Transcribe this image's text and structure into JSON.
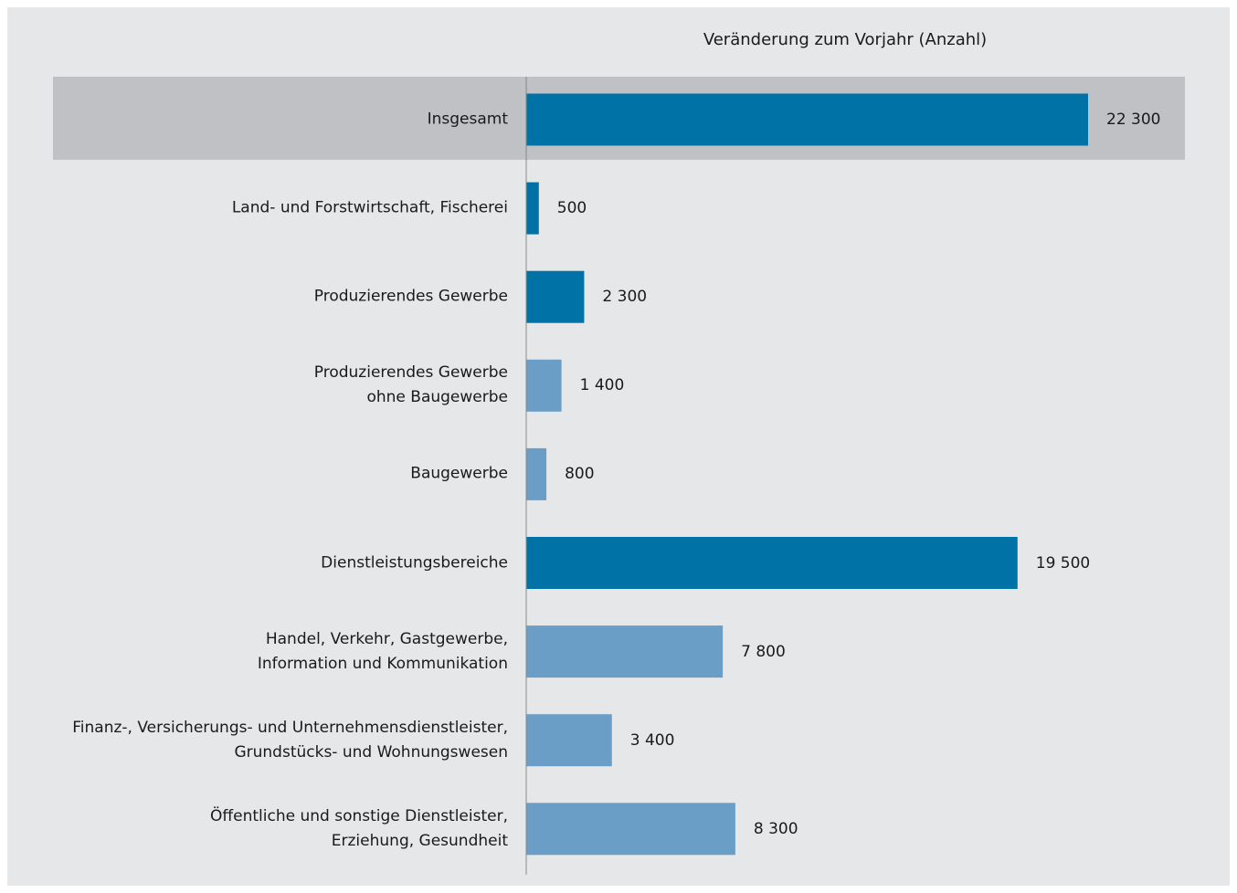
{
  "chart_data": {
    "type": "bar",
    "orientation": "horizontal",
    "title": "Veränderung zum Vorjahr (Anzahl)",
    "categories": [
      "Insgesamt",
      "Land- und Forstwirtschaft, Fischerei",
      "Produzierendes Gewerbe",
      "Produzierendes Gewerbe\nohne Baugewerbe",
      "Baugewerbe",
      "Dienstleistungsbereiche",
      "Handel, Verkehr, Gastgewerbe,\nInformation und Kommunikation",
      "Finanz-, Versicherungs- und Unternehmensdienstleister,\nGrundstücks- und Wohnungswesen",
      "Öffentliche und sonstige Dienstleister,\nErziehung, Gesundheit"
    ],
    "values": [
      22300,
      500,
      2300,
      1400,
      800,
      19500,
      7800,
      3400,
      8300
    ],
    "value_labels": [
      "22 300",
      "500",
      "2 300",
      "1 400",
      "800",
      "19 500",
      "7 800",
      "3 400",
      "8 300"
    ],
    "colors": [
      "#0072a5",
      "#0072a5",
      "#0072a5",
      "#6b9ec6",
      "#6b9ec6",
      "#0072a5",
      "#6b9ec6",
      "#6b9ec6",
      "#6b9ec6"
    ]
  }
}
